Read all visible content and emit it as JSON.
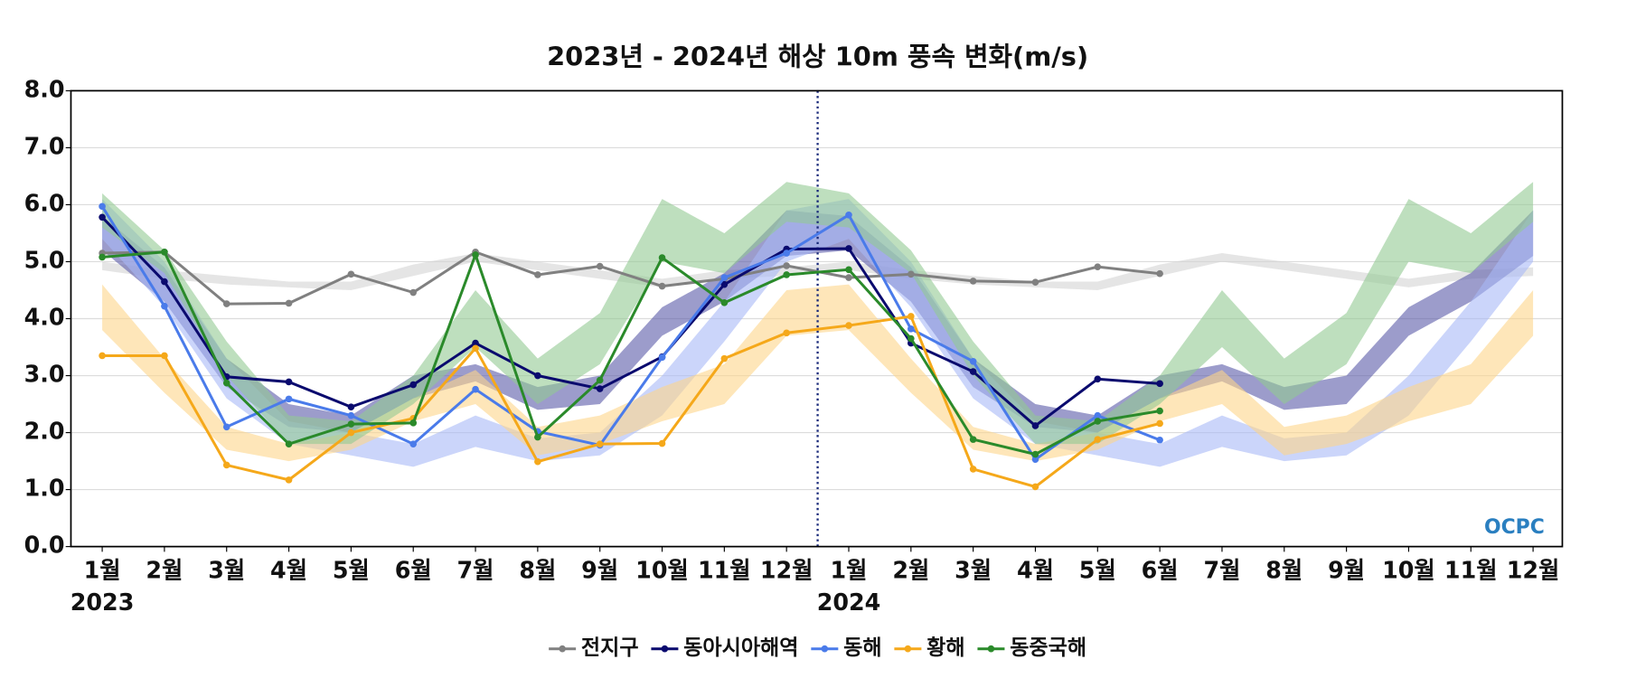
{
  "chart_data": {
    "type": "line",
    "title": "2023년 - 2024년 해상 10m 풍속 변화(m/s)",
    "categories": [
      "1월",
      "2월",
      "3월",
      "4월",
      "5월",
      "6월",
      "7월",
      "8월",
      "9월",
      "10월",
      "11월",
      "12월",
      "1월",
      "2월",
      "3월",
      "4월",
      "5월",
      "6월",
      "7월",
      "8월",
      "9월",
      "10월",
      "11월",
      "12월"
    ],
    "years": [
      "2023",
      "2024"
    ],
    "ylim": [
      0,
      8
    ],
    "yticks": [
      {
        "value": 0,
        "label": "0.0"
      },
      {
        "value": 1,
        "label": "1.0"
      },
      {
        "value": 2,
        "label": "2.0"
      },
      {
        "value": 3,
        "label": "3.0"
      },
      {
        "value": 4,
        "label": "4.0"
      },
      {
        "value": 5,
        "label": "5.0"
      },
      {
        "value": 6,
        "label": "6.0"
      },
      {
        "value": 7,
        "label": "7.0"
      },
      {
        "value": 8,
        "label": "8.0"
      }
    ],
    "grid": true,
    "legend": "bottom",
    "logo": "OCPC",
    "series": [
      {
        "name": "전지구",
        "color": "#808080",
        "band_color": "#d4d4d4",
        "values": [
          5.15,
          5.17,
          4.26,
          4.27,
          4.78,
          4.46,
          5.17,
          4.77,
          4.92,
          4.57,
          4.7,
          4.93,
          4.72,
          4.78,
          4.66,
          4.64,
          4.91,
          4.79,
          null,
          null,
          null,
          null,
          null,
          null
        ],
        "band_low": [
          4.85,
          4.7,
          4.6,
          4.55,
          4.5,
          4.75,
          5.0,
          4.85,
          4.7,
          4.55,
          4.7,
          4.75,
          4.85,
          4.7,
          4.6,
          4.55,
          4.5,
          4.75,
          5.0,
          4.85,
          4.7,
          4.55,
          4.7,
          4.75
        ],
        "band_high": [
          5.0,
          4.85,
          4.75,
          4.65,
          4.65,
          4.95,
          5.15,
          5.0,
          4.85,
          4.7,
          4.85,
          4.9,
          5.0,
          4.85,
          4.75,
          4.65,
          4.65,
          4.95,
          5.15,
          5.0,
          4.85,
          4.7,
          4.85,
          4.9
        ]
      },
      {
        "name": "동아시아해역",
        "color": "#0a0a6e",
        "band_color": "#5a5aa8",
        "values": [
          5.78,
          4.65,
          2.98,
          2.89,
          2.45,
          2.84,
          3.57,
          3.0,
          2.77,
          3.33,
          4.6,
          5.22,
          5.23,
          3.57,
          3.07,
          2.12,
          2.94,
          2.86,
          null,
          null,
          null,
          null,
          null,
          null
        ],
        "band_low": [
          5.2,
          4.3,
          2.8,
          2.1,
          2.0,
          2.6,
          2.9,
          2.4,
          2.5,
          3.7,
          4.3,
          5.1,
          5.2,
          4.3,
          2.8,
          2.1,
          2.0,
          2.6,
          2.9,
          2.4,
          2.5,
          3.7,
          4.3,
          5.1
        ],
        "band_high": [
          5.8,
          4.9,
          3.3,
          2.5,
          2.3,
          3.0,
          3.2,
          2.8,
          3.0,
          4.2,
          4.8,
          5.9,
          5.8,
          4.9,
          3.3,
          2.5,
          2.3,
          3.0,
          3.2,
          2.8,
          3.0,
          4.2,
          4.8,
          5.9
        ]
      },
      {
        "name": "동해",
        "color": "#4a7bea",
        "band_color": "#a9b9f7",
        "values": [
          5.97,
          4.22,
          2.1,
          2.59,
          2.3,
          1.8,
          2.76,
          2.02,
          1.78,
          3.32,
          4.72,
          5.15,
          5.82,
          3.82,
          3.25,
          1.53,
          2.3,
          1.87,
          null,
          null,
          null,
          null,
          null,
          null
        ],
        "band_low": [
          5.4,
          4.2,
          2.6,
          1.8,
          1.6,
          1.4,
          1.75,
          1.5,
          1.6,
          2.3,
          3.6,
          5.0,
          5.4,
          4.2,
          2.6,
          1.8,
          1.6,
          1.4,
          1.75,
          1.5,
          1.6,
          2.3,
          3.6,
          5.0
        ],
        "band_high": [
          6.1,
          5.0,
          3.3,
          2.2,
          2.0,
          1.8,
          2.3,
          1.9,
          2.0,
          3.0,
          4.3,
          5.9,
          6.1,
          5.0,
          3.3,
          2.2,
          2.0,
          1.8,
          2.3,
          1.9,
          2.0,
          3.0,
          4.3,
          5.9
        ]
      },
      {
        "name": "황해",
        "color": "#f5a81a",
        "band_color": "#fdd58a",
        "values": [
          3.35,
          3.35,
          1.43,
          1.17,
          2.0,
          2.25,
          3.48,
          1.49,
          1.8,
          1.81,
          3.3,
          3.75,
          3.88,
          4.04,
          1.36,
          1.05,
          1.88,
          2.16,
          null,
          null,
          null,
          null,
          null,
          null
        ],
        "band_low": [
          3.8,
          2.7,
          1.7,
          1.5,
          1.7,
          2.2,
          2.5,
          1.6,
          1.8,
          2.2,
          2.5,
          3.7,
          3.8,
          2.7,
          1.7,
          1.5,
          1.7,
          2.2,
          2.5,
          1.6,
          1.8,
          2.2,
          2.5,
          3.7
        ],
        "band_high": [
          4.6,
          3.3,
          2.1,
          1.8,
          2.0,
          2.6,
          3.1,
          2.1,
          2.3,
          2.8,
          3.2,
          4.5,
          4.6,
          3.3,
          2.1,
          1.8,
          2.0,
          2.6,
          3.1,
          2.1,
          2.3,
          2.8,
          3.2,
          4.5
        ]
      },
      {
        "name": "동중국해",
        "color": "#2a8a2a",
        "band_color": "#93c993",
        "values": [
          5.08,
          5.17,
          2.87,
          1.8,
          2.15,
          2.17,
          5.12,
          1.92,
          2.92,
          5.07,
          4.28,
          4.77,
          4.86,
          3.65,
          1.88,
          1.62,
          2.2,
          2.38,
          null,
          null,
          null,
          null,
          null,
          null
        ],
        "band_low": [
          5.6,
          4.8,
          3.0,
          1.8,
          1.8,
          2.5,
          3.5,
          2.5,
          3.2,
          5.0,
          4.8,
          5.7,
          5.6,
          4.8,
          3.0,
          1.8,
          1.8,
          2.5,
          3.5,
          2.5,
          3.2,
          5.0,
          4.8,
          5.7
        ],
        "band_high": [
          6.2,
          5.2,
          3.6,
          2.3,
          2.2,
          3.0,
          4.5,
          3.3,
          4.1,
          6.1,
          5.5,
          6.4,
          6.2,
          5.2,
          3.6,
          2.3,
          2.2,
          3.0,
          4.5,
          3.3,
          4.1,
          6.1,
          5.5,
          6.4
        ]
      }
    ]
  }
}
